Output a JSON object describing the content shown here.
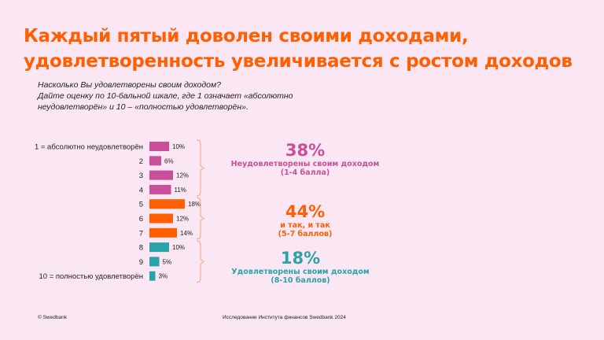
{
  "title": {
    "line1": "Каждый пятый доволен своими доходами,",
    "line2": "удовлетворенность увеличивается с ростом доходов"
  },
  "question": {
    "line1": "Насколько Вы удовлетворены своим доходом?",
    "line2": "Дайте оценку по 10-бальной шкале, где 1 означает «абсолютно",
    "line3": "неудовлетворён» и 10 – «полностью удовлетворён»."
  },
  "chart_data": {
    "type": "bar",
    "orientation": "horizontal",
    "categories": [
      "1 = абсолютно неудовлетворён",
      "2",
      "3",
      "4",
      "5",
      "6",
      "7",
      "8",
      "9",
      "10 = полностью удовлетворён"
    ],
    "values": [
      10,
      6,
      12,
      11,
      18,
      12,
      14,
      10,
      5,
      3
    ],
    "data_labels": [
      "10%",
      "6%",
      "12%",
      "11%",
      "18%",
      "12%",
      "14%",
      "10%",
      "5%",
      "3%"
    ],
    "bar_colors": [
      "#c94f9a",
      "#c94f9a",
      "#c94f9a",
      "#c94f9a",
      "#ff5f00",
      "#ff5f00",
      "#ff5f00",
      "#2aa3a8",
      "#2aa3a8",
      "#2aa3a8"
    ],
    "groups": [
      {
        "percent": "38%",
        "label1": "Неудовлетворены своим доходом",
        "label2": "(1-4 балла)",
        "color": "#c94f9a",
        "from": 0,
        "to": 3
      },
      {
        "percent": "44%",
        "label1": "и так, и так",
        "label2": "(5-7 баллов)",
        "color": "#ff5f00",
        "from": 4,
        "to": 6
      },
      {
        "percent": "18%",
        "label1": "Удовлетворены своим доходом",
        "label2": "(8-10 баллов)",
        "color": "#2aa3a8",
        "from": 7,
        "to": 9
      }
    ]
  },
  "footer": {
    "left": "© Swedbank",
    "center": "Исследование Института финансов Swedbank 2024"
  }
}
